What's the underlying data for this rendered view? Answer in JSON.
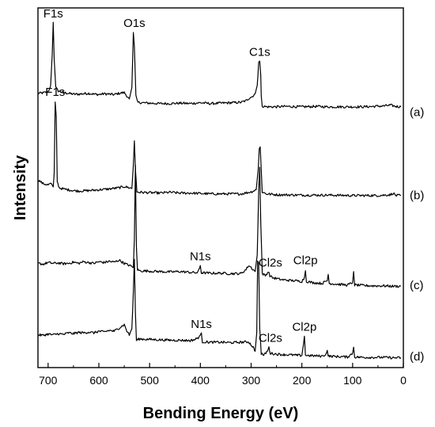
{
  "chart_data": {
    "type": "line",
    "title": "",
    "xlabel": "Bending Energy (eV)",
    "ylabel": "Intensity",
    "x_reversed": true,
    "xlim": [
      720,
      0
    ],
    "x_ticks": [
      "700",
      "600",
      "500",
      "400",
      "300",
      "200",
      "100",
      "0"
    ],
    "y_ticks_shown": false,
    "grid": false,
    "legend": "none",
    "line_color": "#000000",
    "series": [
      {
        "name": "(a)",
        "baseline": 0.0,
        "points": [
          [
            720,
            0.36
          ],
          [
            710,
            0.37
          ],
          [
            700,
            0.4
          ],
          [
            695,
            0.55
          ],
          [
            692,
            1.3
          ],
          [
            690,
            2.1
          ],
          [
            688,
            1.2
          ],
          [
            685,
            0.5
          ],
          [
            680,
            0.42
          ],
          [
            670,
            0.38
          ],
          [
            660,
            0.36
          ],
          [
            650,
            0.34
          ],
          [
            640,
            0.34
          ],
          [
            630,
            0.35
          ],
          [
            620,
            0.36
          ],
          [
            610,
            0.34
          ],
          [
            600,
            0.33
          ],
          [
            590,
            0.35
          ],
          [
            580,
            0.34
          ],
          [
            570,
            0.33
          ],
          [
            560,
            0.36
          ],
          [
            550,
            0.38
          ],
          [
            545,
            0.3
          ],
          [
            540,
            0.22
          ],
          [
            535,
            0.5
          ],
          [
            532,
            1.85
          ],
          [
            530,
            1.5
          ],
          [
            527,
            0.3
          ],
          [
            524,
            0.14
          ],
          [
            515,
            0.13
          ],
          [
            500,
            0.12
          ],
          [
            480,
            0.11
          ],
          [
            460,
            0.11
          ],
          [
            440,
            0.12
          ],
          [
            420,
            0.11
          ],
          [
            400,
            0.13
          ],
          [
            380,
            0.11
          ],
          [
            360,
            0.12
          ],
          [
            340,
            0.13
          ],
          [
            320,
            0.14
          ],
          [
            310,
            0.18
          ],
          [
            303,
            0.25
          ],
          [
            298,
            0.28
          ],
          [
            292,
            0.35
          ],
          [
            288,
            0.55
          ],
          [
            285,
            1.1
          ],
          [
            283,
            1.15
          ],
          [
            281,
            0.8
          ],
          [
            280,
            0.3
          ],
          [
            278,
            0.05
          ],
          [
            270,
            0.03
          ],
          [
            250,
            0.03
          ],
          [
            230,
            0.04
          ],
          [
            200,
            0.03
          ],
          [
            170,
            0.04
          ],
          [
            150,
            0.03
          ],
          [
            120,
            0.03
          ],
          [
            100,
            0.03
          ],
          [
            80,
            0.03
          ],
          [
            60,
            0.04
          ],
          [
            40,
            0.05
          ],
          [
            25,
            0.07
          ],
          [
            15,
            0.04
          ],
          [
            5,
            0.03
          ]
        ]
      },
      {
        "name": "(b)",
        "baseline": -2.15,
        "points": [
          [
            720,
            -1.75
          ],
          [
            715,
            -1.8
          ],
          [
            710,
            -1.85
          ],
          [
            700,
            -1.88
          ],
          [
            695,
            -1.85
          ],
          [
            692,
            -1.9
          ],
          [
            690,
            -1.93
          ],
          [
            688,
            -1.6
          ],
          [
            686,
            0.15
          ],
          [
            684,
            -0.2
          ],
          [
            682,
            -1.8
          ],
          [
            678,
            -1.95
          ],
          [
            670,
            -1.98
          ],
          [
            660,
            -2.0
          ],
          [
            650,
            -2.02
          ],
          [
            640,
            -2.03
          ],
          [
            620,
            -2.02
          ],
          [
            600,
            -2.0
          ],
          [
            580,
            -1.98
          ],
          [
            560,
            -1.95
          ],
          [
            550,
            -1.92
          ],
          [
            540,
            -1.95
          ],
          [
            535,
            -1.97
          ],
          [
            532,
            -1.4
          ],
          [
            530,
            -0.8
          ],
          [
            528,
            -1.5
          ],
          [
            525,
            -2.05
          ],
          [
            520,
            -2.06
          ],
          [
            500,
            -2.07
          ],
          [
            480,
            -2.08
          ],
          [
            460,
            -2.06
          ],
          [
            440,
            -2.08
          ],
          [
            420,
            -2.08
          ],
          [
            400,
            -2.09
          ],
          [
            380,
            -2.1
          ],
          [
            360,
            -2.1
          ],
          [
            340,
            -2.1
          ],
          [
            320,
            -2.1
          ],
          [
            300,
            -2.05
          ],
          [
            290,
            -2.0
          ],
          [
            286,
            -1.5
          ],
          [
            284,
            -1.0
          ],
          [
            282,
            -0.95
          ],
          [
            280,
            -1.5
          ],
          [
            278,
            -2.05
          ],
          [
            270,
            -2.1
          ],
          [
            250,
            -2.12
          ],
          [
            200,
            -2.13
          ],
          [
            150,
            -2.13
          ],
          [
            100,
            -2.14
          ],
          [
            50,
            -2.14
          ],
          [
            25,
            -2.12
          ],
          [
            20,
            -2.08
          ],
          [
            15,
            -2.14
          ],
          [
            5,
            -2.14
          ]
        ]
      },
      {
        "name": "(c)",
        "baseline": -4.35,
        "points": [
          [
            720,
            -3.8
          ],
          [
            710,
            -3.82
          ],
          [
            700,
            -3.78
          ],
          [
            690,
            -3.8
          ],
          [
            680,
            -3.79
          ],
          [
            670,
            -3.81
          ],
          [
            660,
            -3.8
          ],
          [
            650,
            -3.77
          ],
          [
            640,
            -3.8
          ],
          [
            630,
            -3.76
          ],
          [
            620,
            -3.78
          ],
          [
            610,
            -3.8
          ],
          [
            600,
            -3.76
          ],
          [
            590,
            -3.78
          ],
          [
            580,
            -3.75
          ],
          [
            570,
            -3.77
          ],
          [
            560,
            -3.72
          ],
          [
            550,
            -3.8
          ],
          [
            540,
            -3.85
          ],
          [
            532,
            -3.9
          ],
          [
            530,
            -3.2
          ],
          [
            528,
            -1.4
          ],
          [
            526,
            -3.4
          ],
          [
            524,
            -3.95
          ],
          [
            520,
            -3.98
          ],
          [
            500,
            -3.99
          ],
          [
            480,
            -4.0
          ],
          [
            460,
            -4.01
          ],
          [
            440,
            -4.0
          ],
          [
            420,
            -4.02
          ],
          [
            405,
            -4.03
          ],
          [
            400,
            -3.85
          ],
          [
            398,
            -4.03
          ],
          [
            380,
            -4.04
          ],
          [
            360,
            -4.04
          ],
          [
            340,
            -4.05
          ],
          [
            320,
            -4.05
          ],
          [
            310,
            -3.95
          ],
          [
            305,
            -3.85
          ],
          [
            300,
            -3.9
          ],
          [
            292,
            -4.0
          ],
          [
            288,
            -3.6
          ],
          [
            285,
            -2.0
          ],
          [
            283,
            -1.45
          ],
          [
            281,
            -2.8
          ],
          [
            278,
            -4.05
          ],
          [
            272,
            -4.1
          ],
          [
            266,
            -4.0
          ],
          [
            263,
            -4.1
          ],
          [
            258,
            -4.15
          ],
          [
            240,
            -4.2
          ],
          [
            220,
            -4.22
          ],
          [
            200,
            -4.24
          ],
          [
            195,
            -4.15
          ],
          [
            193,
            -3.98
          ],
          [
            191,
            -4.24
          ],
          [
            180,
            -4.27
          ],
          [
            160,
            -4.29
          ],
          [
            150,
            -4.22
          ],
          [
            148,
            -4.07
          ],
          [
            146,
            -4.29
          ],
          [
            130,
            -4.31
          ],
          [
            110,
            -4.33
          ],
          [
            100,
            -4.27
          ],
          [
            98,
            -4.0
          ],
          [
            96,
            -4.33
          ],
          [
            80,
            -4.34
          ],
          [
            60,
            -4.35
          ],
          [
            40,
            -4.35
          ],
          [
            20,
            -4.36
          ],
          [
            5,
            -4.36
          ]
        ]
      },
      {
        "name": "(d)",
        "baseline": -6.1,
        "points": [
          [
            720,
            -5.55
          ],
          [
            710,
            -5.56
          ],
          [
            700,
            -5.53
          ],
          [
            690,
            -5.55
          ],
          [
            680,
            -5.52
          ],
          [
            670,
            -5.54
          ],
          [
            660,
            -5.5
          ],
          [
            650,
            -5.52
          ],
          [
            640,
            -5.49
          ],
          [
            630,
            -5.5
          ],
          [
            620,
            -5.48
          ],
          [
            610,
            -5.5
          ],
          [
            600,
            -5.46
          ],
          [
            590,
            -5.48
          ],
          [
            580,
            -5.44
          ],
          [
            570,
            -5.46
          ],
          [
            560,
            -5.38
          ],
          [
            550,
            -5.3
          ],
          [
            545,
            -5.45
          ],
          [
            540,
            -5.55
          ],
          [
            535,
            -5.4
          ],
          [
            532,
            -4.5
          ],
          [
            530,
            -3.7
          ],
          [
            528,
            -5.0
          ],
          [
            526,
            -5.68
          ],
          [
            520,
            -5.65
          ],
          [
            500,
            -5.66
          ],
          [
            480,
            -5.67
          ],
          [
            460,
            -5.68
          ],
          [
            440,
            -5.68
          ],
          [
            420,
            -5.69
          ],
          [
            410,
            -5.66
          ],
          [
            400,
            -5.58
          ],
          [
            398,
            -5.5
          ],
          [
            396,
            -5.72
          ],
          [
            380,
            -5.73
          ],
          [
            360,
            -5.73
          ],
          [
            340,
            -5.74
          ],
          [
            320,
            -5.73
          ],
          [
            305,
            -5.72
          ],
          [
            296,
            -5.85
          ],
          [
            292,
            -5.95
          ],
          [
            289,
            -5.5
          ],
          [
            287,
            -3.75
          ],
          [
            285,
            -3.8
          ],
          [
            283,
            -5.4
          ],
          [
            280,
            -6.0
          ],
          [
            275,
            -6.05
          ],
          [
            268,
            -5.95
          ],
          [
            265,
            -5.86
          ],
          [
            262,
            -6.0
          ],
          [
            250,
            -6.02
          ],
          [
            240,
            -6.03
          ],
          [
            220,
            -6.04
          ],
          [
            210,
            -6.05
          ],
          [
            200,
            -6.05
          ],
          [
            197,
            -5.8
          ],
          [
            195,
            -5.58
          ],
          [
            193,
            -6.05
          ],
          [
            180,
            -6.06
          ],
          [
            160,
            -6.07
          ],
          [
            152,
            -6.02
          ],
          [
            150,
            -5.9
          ],
          [
            148,
            -6.07
          ],
          [
            130,
            -6.08
          ],
          [
            110,
            -6.09
          ],
          [
            100,
            -6.0
          ],
          [
            98,
            -5.85
          ],
          [
            96,
            -6.09
          ],
          [
            80,
            -6.1
          ],
          [
            60,
            -6.1
          ],
          [
            40,
            -6.1
          ],
          [
            20,
            -6.11
          ],
          [
            5,
            -6.11
          ]
        ]
      }
    ],
    "annotations": [
      {
        "text": "F1s",
        "x": 690,
        "y": 2.22
      },
      {
        "text": "O1s",
        "x": 530,
        "y": 1.98
      },
      {
        "text": "C1s",
        "x": 283,
        "y": 1.28
      },
      {
        "text": "F1s",
        "x": 686,
        "y": 0.3
      },
      {
        "text": "N1s",
        "x": 400,
        "y": -3.72
      },
      {
        "text": "Cl2s",
        "x": 262,
        "y": -3.88
      },
      {
        "text": "Cl2p",
        "x": 193,
        "y": -3.82
      },
      {
        "text": "N1s",
        "x": 398,
        "y": -5.38
      },
      {
        "text": "Cl2s",
        "x": 262,
        "y": -5.72
      },
      {
        "text": "Cl2p",
        "x": 195,
        "y": -5.45
      }
    ],
    "series_labels": [
      "(a)",
      "(b)",
      "(c)",
      "(d)"
    ]
  }
}
